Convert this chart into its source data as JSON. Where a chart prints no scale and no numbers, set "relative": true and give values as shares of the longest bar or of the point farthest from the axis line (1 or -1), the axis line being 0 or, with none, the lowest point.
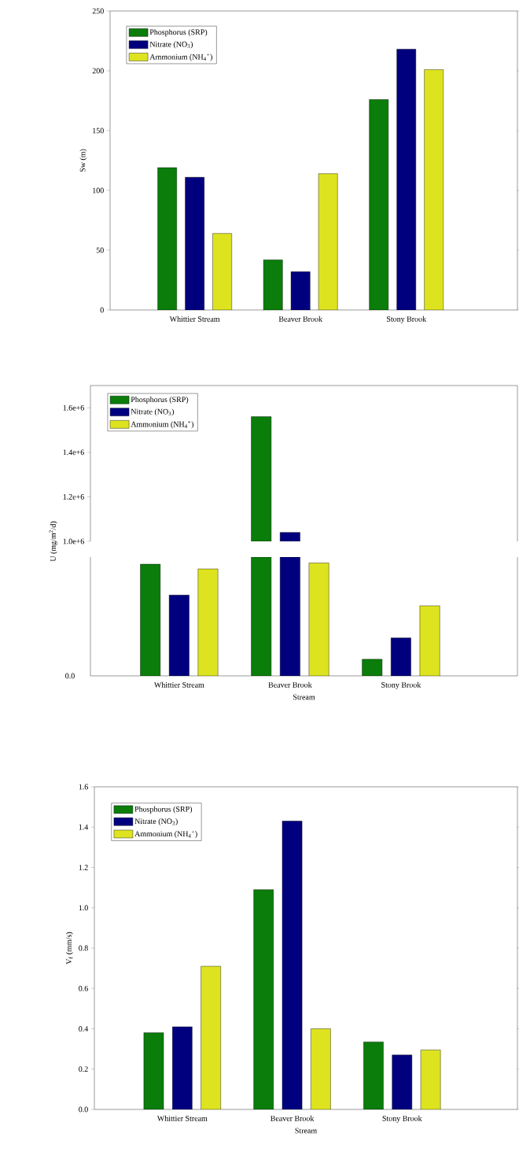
{
  "chart_data": [
    {
      "type": "bar",
      "categories": [
        "Whittier Stream",
        "Beaver Brook",
        "Stony Brook"
      ],
      "ylabel": "Sw (m)",
      "ylim": [
        0,
        250
      ],
      "yticks": [
        0,
        50,
        100,
        150,
        200,
        250
      ],
      "legend": "top left",
      "series": [
        {
          "name": "Phosphorus (SRP)",
          "color": "#0a7d0a",
          "values": [
            119,
            42,
            176
          ]
        },
        {
          "name": "Nitrate (NO$_{3}$)",
          "color": "#00007f",
          "values": [
            111,
            32,
            218
          ]
        },
        {
          "name": "Ammonium (NH$_{4}$$^{+}$)",
          "color": "#dde31f",
          "values": [
            64,
            114,
            201
          ]
        }
      ]
    },
    {
      "type": "bar",
      "ylabel": "U (mg/m$^{2}$/d)",
      "ylim": [
        1000000,
        1700000
      ],
      "yticks": [
        {
          "value": 1000000,
          "label": "1.0e+6"
        },
        {
          "value": 1200000,
          "label": "1.2e+6"
        },
        {
          "value": 1400000,
          "label": "1.4e+6"
        },
        {
          "value": 1600000,
          "label": "1.6e+6"
        }
      ],
      "tick_labels": "y",
      "legend": "top left",
      "series": [
        {
          "name": "Phosphorus (SRP)",
          "color": "#0a7d0a",
          "values": [
            null,
            1560000,
            null
          ]
        },
        {
          "name": "Nitrate (NO$_{3}$)",
          "color": "#00007f",
          "values": [
            null,
            1040000,
            null
          ]
        },
        {
          "name": "Ammonium (NH$_{4}$$^{+}$)",
          "color": "#dde31f",
          "values": [
            null,
            null,
            null
          ]
        }
      ]
    },
    {
      "type": "bar",
      "categories": [
        "Whittier Stream",
        "Beaver Brook",
        "Stony Brook"
      ],
      "xlabel": "Stream",
      "relative": true,
      "annotations": [
        "0.0"
      ],
      "series": [
        {
          "color": "#0a7d0a",
          "values": [
            0.94,
            1,
            0.14
          ]
        },
        {
          "color": "#00007f",
          "values": [
            0.68,
            1,
            0.32
          ]
        },
        {
          "color": "#dde31f",
          "values": [
            0.9,
            0.95,
            0.59
          ]
        }
      ]
    },
    {
      "type": "bar",
      "categories": [
        "Whittier Stream",
        "Beaver Brook",
        "Stony Brook"
      ],
      "xlabel": "Stream",
      "ylabel": "V$_{f}$ (mm/s)",
      "ylim": [
        0,
        1.6
      ],
      "yticks": [
        {
          "value": 0,
          "label": "0.0"
        },
        {
          "value": 0.2,
          "label": "0.2"
        },
        {
          "value": 0.4,
          "label": "0.4"
        },
        {
          "value": 0.6,
          "label": "0.6"
        },
        {
          "value": 0.8,
          "label": "0.8"
        },
        {
          "value": 1.0,
          "label": "1.0"
        },
        {
          "value": 1.2,
          "label": "1.2"
        },
        {
          "value": 1.4,
          "label": "1.4"
        },
        {
          "value": 1.6,
          "label": "1.6"
        }
      ],
      "legend": "top left",
      "series": [
        {
          "name": "Phosphorus (SRP)",
          "color": "#0a7d0a",
          "values": [
            0.38,
            1.09,
            0.335
          ]
        },
        {
          "name": "Nitrate (NO$_{3}$)",
          "color": "#00007f",
          "values": [
            0.41,
            1.43,
            0.27
          ]
        },
        {
          "name": "Ammonium (NH$_{4}$$^{+}$)",
          "color": "#dde31f",
          "values": [
            0.71,
            0.4,
            0.295
          ]
        }
      ]
    }
  ]
}
